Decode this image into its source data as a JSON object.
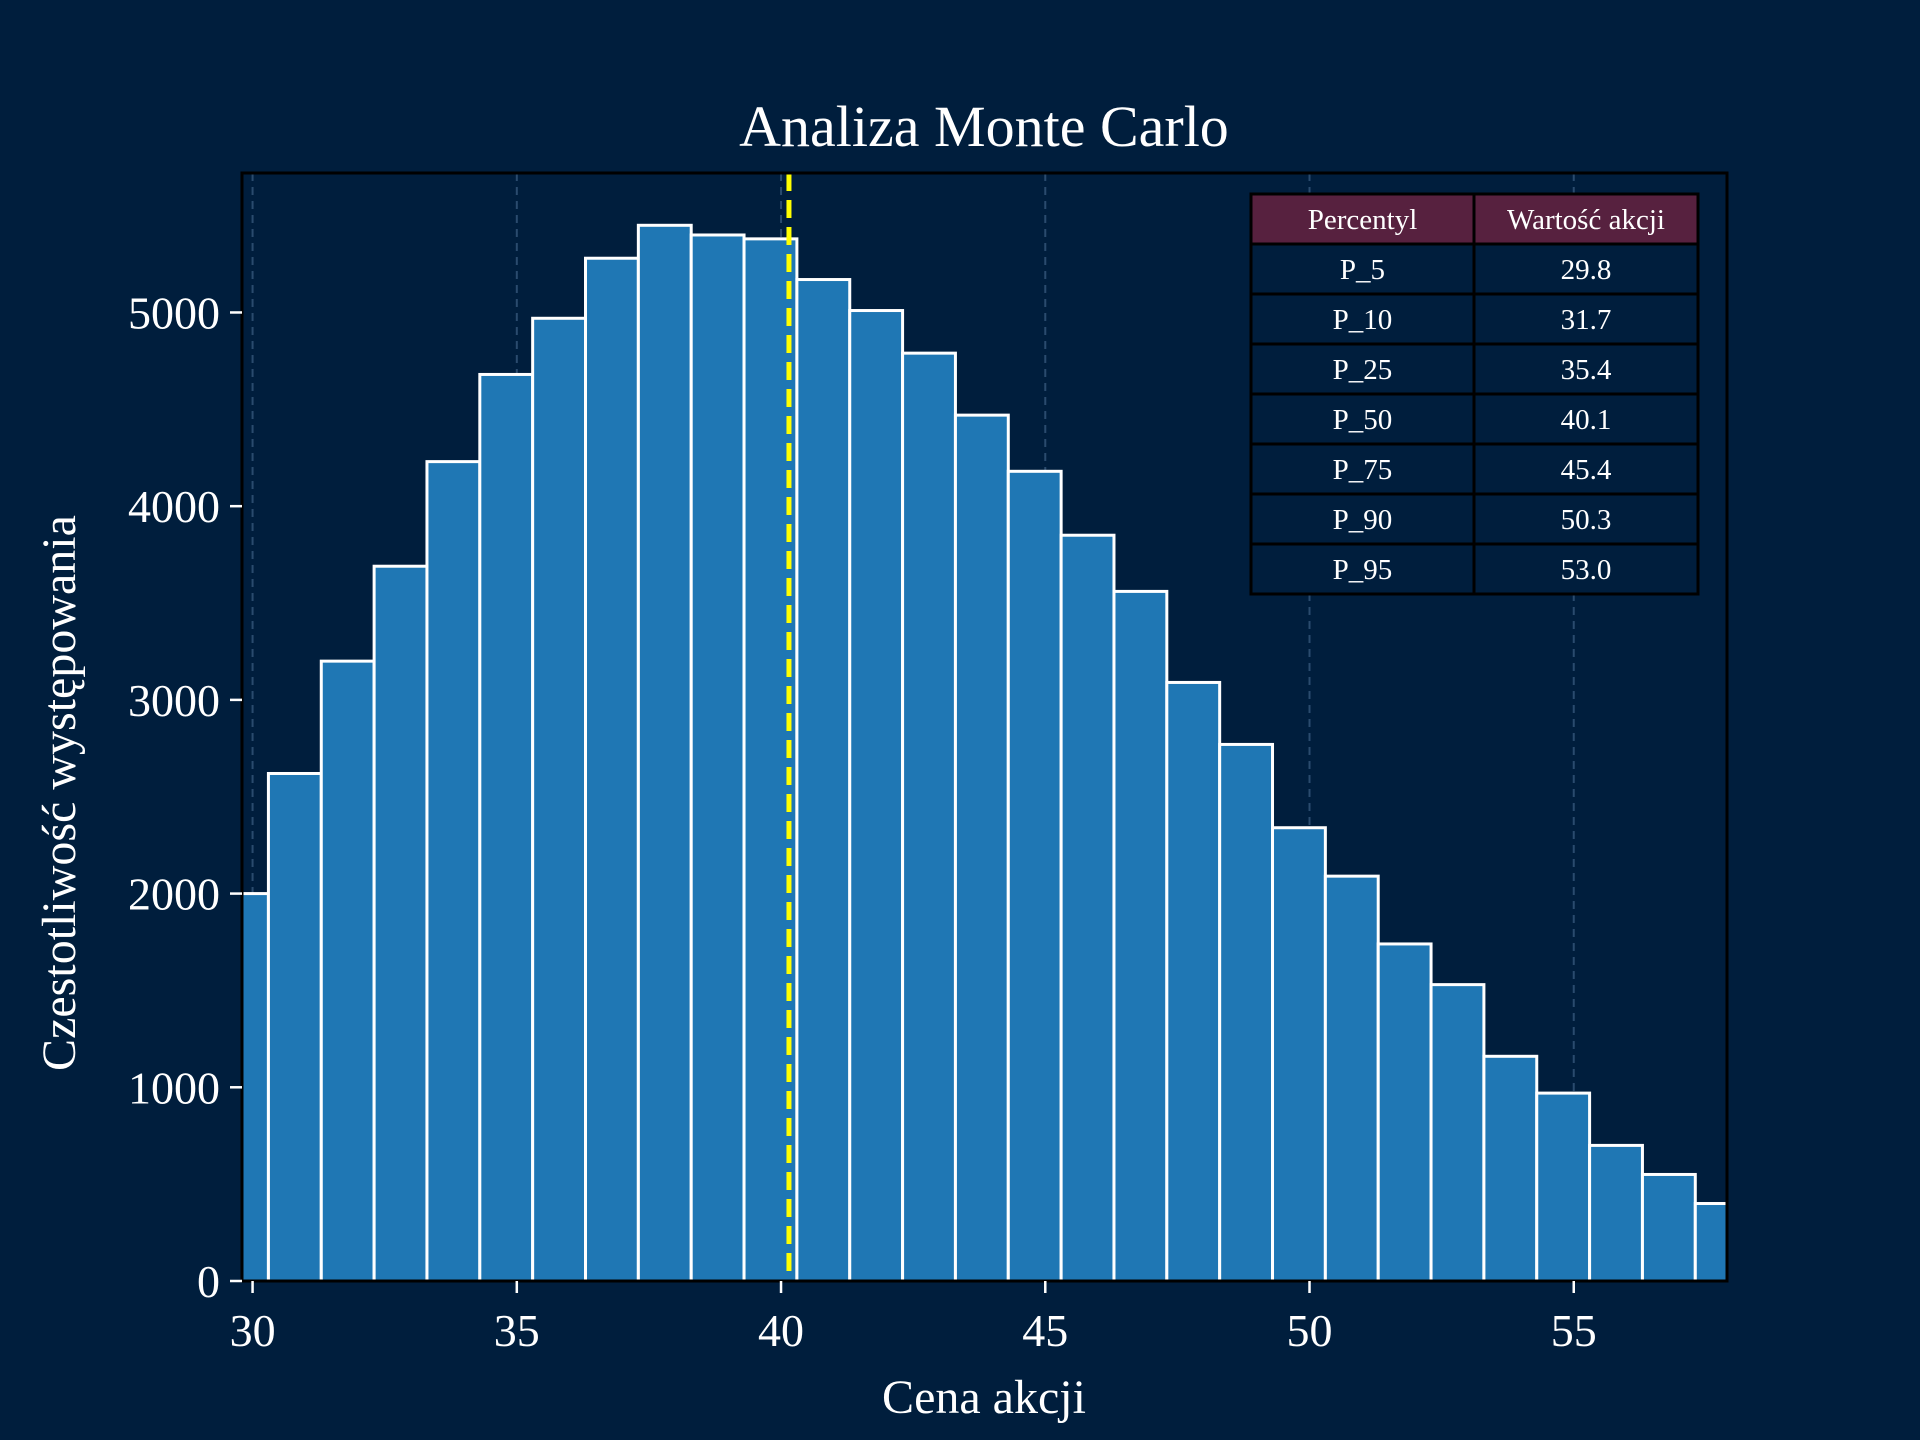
{
  "colors": {
    "background": "#001e3d",
    "bar_fill": "#1f77b4",
    "bar_edge": "#ffffff",
    "median_line": "#ffff00",
    "grid": "#2a4b6e",
    "table_header": "#57213f",
    "table_cell": "#001e3d",
    "table_border": "#000000"
  },
  "chart_data": {
    "type": "bar",
    "title": "Analiza Monte Carlo",
    "xlabel": "Cena akcji",
    "ylabel": "Czestotliwość występowania",
    "xlim": [
      29.8,
      57.9
    ],
    "ylim": [
      0,
      5720
    ],
    "xticks": [
      30,
      35,
      40,
      45,
      50,
      55
    ],
    "yticks": [
      0,
      1000,
      2000,
      3000,
      4000,
      5000
    ],
    "grid": "vertical dashed",
    "bin_width": 1.0,
    "bins_left": [
      29.3,
      30.3,
      31.3,
      32.3,
      33.3,
      34.3,
      35.3,
      36.3,
      37.3,
      38.3,
      39.3,
      40.3,
      41.3,
      42.3,
      43.3,
      44.3,
      45.3,
      46.3,
      47.3,
      48.3,
      49.3,
      50.3,
      51.3,
      52.3,
      53.3,
      54.3,
      55.3,
      56.3,
      57.3
    ],
    "values": [
      2000,
      2620,
      3200,
      3690,
      4230,
      4680,
      4970,
      5280,
      5450,
      5400,
      5380,
      5170,
      5010,
      4790,
      4470,
      4180,
      3850,
      3560,
      3090,
      2770,
      2340,
      2090,
      1740,
      1530,
      1160,
      970,
      700,
      550,
      400
    ],
    "median_line_x": 40.15,
    "table": {
      "headers": [
        "Percentyl",
        "Wartość akcji"
      ],
      "rows": [
        [
          "P_5",
          "29.8"
        ],
        [
          "P_10",
          "31.7"
        ],
        [
          "P_25",
          "35.4"
        ],
        [
          "P_50",
          "40.1"
        ],
        [
          "P_75",
          "45.4"
        ],
        [
          "P_90",
          "50.3"
        ],
        [
          "P_95",
          "53.0"
        ]
      ],
      "placement": "top-right"
    }
  }
}
